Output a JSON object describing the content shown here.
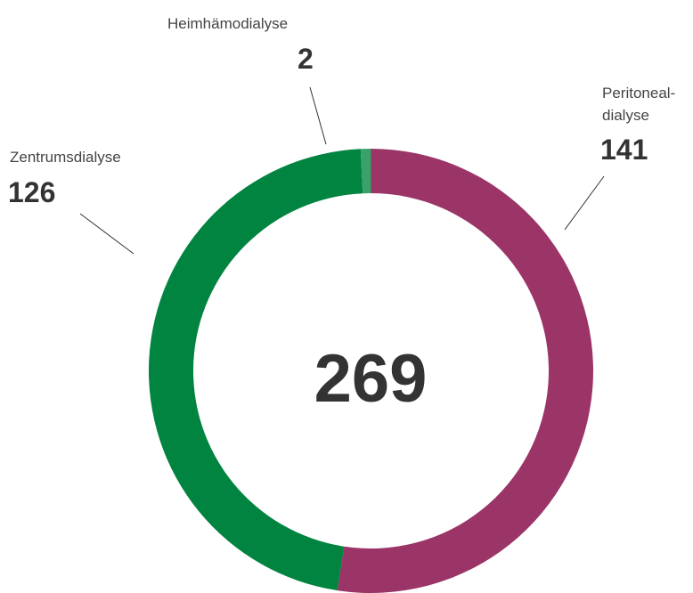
{
  "chart_data": {
    "type": "donut",
    "categories": [
      "Peritoneal-\ndialyse",
      "Zentrumsdialyse",
      "Heimhämodialyse"
    ],
    "values": [
      141,
      126,
      2
    ],
    "colors": [
      "#9b3467",
      "#00843f",
      "#3aa06c"
    ],
    "total": 269
  }
}
